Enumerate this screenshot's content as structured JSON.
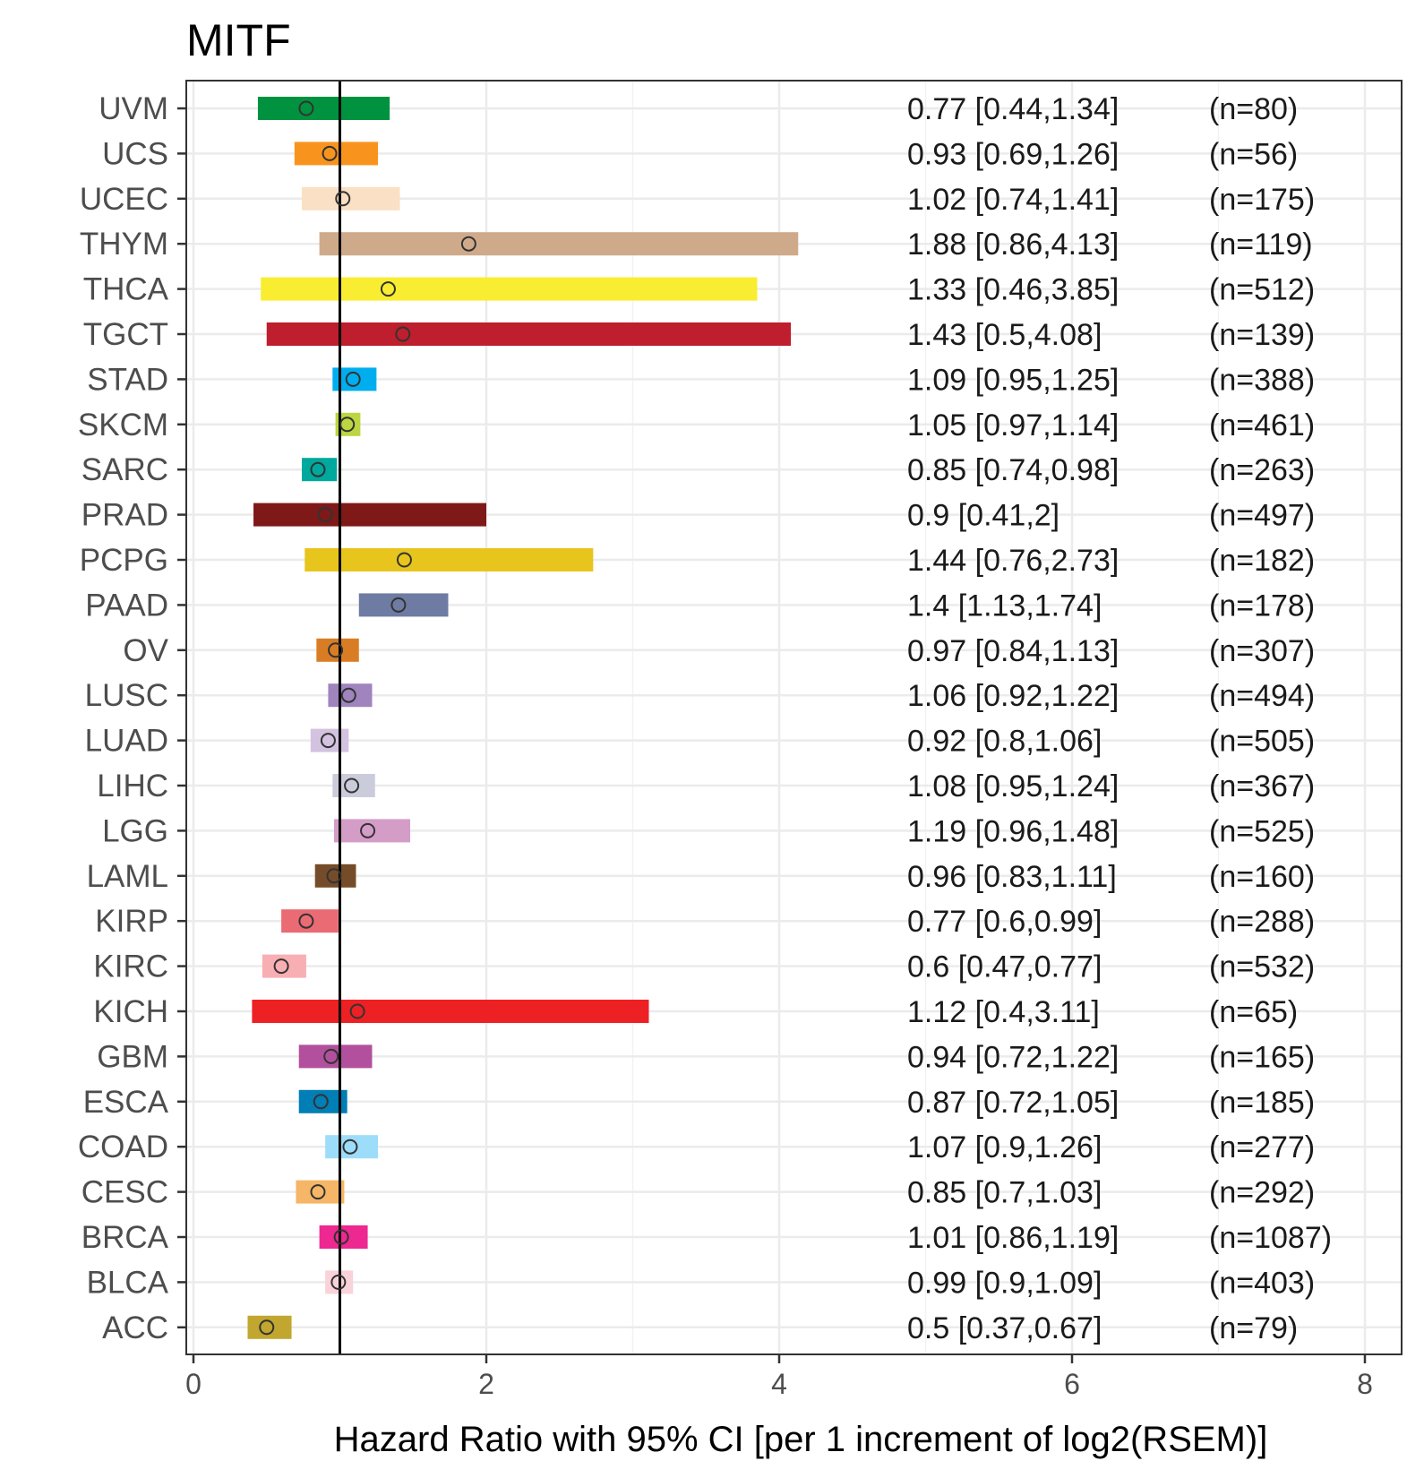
{
  "chart_data": {
    "type": "forest",
    "title": "MITF",
    "xlabel": "Hazard Ratio with 95% CI [per 1 increment of log2(RSEM)]",
    "ylabel": "",
    "xlim": [
      0,
      8
    ],
    "xticks": [
      0,
      2,
      4,
      6,
      8
    ],
    "reference_line": 1,
    "grid": true,
    "rows": [
      {
        "name": "UVM",
        "hr": 0.77,
        "lo": 0.44,
        "hi": 1.34,
        "label": "0.77 [0.44,1.34]",
        "n": "(n=80)",
        "color": "#00923F"
      },
      {
        "name": "UCS",
        "hr": 0.93,
        "lo": 0.69,
        "hi": 1.26,
        "label": "0.93 [0.69,1.26]",
        "n": "(n=56)",
        "color": "#F8941E"
      },
      {
        "name": "UCEC",
        "hr": 1.02,
        "lo": 0.74,
        "hi": 1.41,
        "label": "1.02 [0.74,1.41]",
        "n": "(n=175)",
        "color": "#FAE0C4"
      },
      {
        "name": "THYM",
        "hr": 1.88,
        "lo": 0.86,
        "hi": 4.13,
        "label": "1.88 [0.86,4.13]",
        "n": "(n=119)",
        "color": "#CFAA8A"
      },
      {
        "name": "THCA",
        "hr": 1.33,
        "lo": 0.46,
        "hi": 3.85,
        "label": "1.33 [0.46,3.85]",
        "n": "(n=512)",
        "color": "#F9ED32"
      },
      {
        "name": "TGCT",
        "hr": 1.43,
        "lo": 0.5,
        "hi": 4.08,
        "label": "1.43 [0.5,4.08]",
        "n": "(n=139)",
        "color": "#BE1E2D"
      },
      {
        "name": "STAD",
        "hr": 1.09,
        "lo": 0.95,
        "hi": 1.25,
        "label": "1.09 [0.95,1.25]",
        "n": "(n=388)",
        "color": "#00AEEF"
      },
      {
        "name": "SKCM",
        "hr": 1.05,
        "lo": 0.97,
        "hi": 1.14,
        "label": "1.05 [0.97,1.14]",
        "n": "(n=461)",
        "color": "#BBD642"
      },
      {
        "name": "SARC",
        "hr": 0.85,
        "lo": 0.74,
        "hi": 0.98,
        "label": "0.85 [0.74,0.98]",
        "n": "(n=263)",
        "color": "#00A99D"
      },
      {
        "name": "PRAD",
        "hr": 0.9,
        "lo": 0.41,
        "hi": 2,
        "label": "0.9 [0.41,2]",
        "n": "(n=497)",
        "color": "#7E1918"
      },
      {
        "name": "PCPG",
        "hr": 1.44,
        "lo": 0.76,
        "hi": 2.73,
        "label": "1.44 [0.76,2.73]",
        "n": "(n=182)",
        "color": "#E8C51D"
      },
      {
        "name": "PAAD",
        "hr": 1.4,
        "lo": 1.13,
        "hi": 1.74,
        "label": "1.4 [1.13,1.74]",
        "n": "(n=178)",
        "color": "#6E7BA2"
      },
      {
        "name": "OV",
        "hr": 0.97,
        "lo": 0.84,
        "hi": 1.13,
        "label": "0.97 [0.84,1.13]",
        "n": "(n=307)",
        "color": "#D97D25"
      },
      {
        "name": "LUSC",
        "hr": 1.06,
        "lo": 0.92,
        "hi": 1.22,
        "label": "1.06 [0.92,1.22]",
        "n": "(n=494)",
        "color": "#A084BD"
      },
      {
        "name": "LUAD",
        "hr": 0.92,
        "lo": 0.8,
        "hi": 1.06,
        "label": "0.92 [0.8,1.06]",
        "n": "(n=505)",
        "color": "#D3C3E0"
      },
      {
        "name": "LIHC",
        "hr": 1.08,
        "lo": 0.95,
        "hi": 1.24,
        "label": "1.08 [0.95,1.24]",
        "n": "(n=367)",
        "color": "#CACCDB"
      },
      {
        "name": "LGG",
        "hr": 1.19,
        "lo": 0.96,
        "hi": 1.48,
        "label": "1.19 [0.96,1.48]",
        "n": "(n=525)",
        "color": "#D49DC7"
      },
      {
        "name": "LAML",
        "hr": 0.96,
        "lo": 0.83,
        "hi": 1.11,
        "label": "0.96 [0.83,1.11]",
        "n": "(n=160)",
        "color": "#754C29"
      },
      {
        "name": "KIRP",
        "hr": 0.77,
        "lo": 0.6,
        "hi": 0.99,
        "label": "0.77 [0.6,0.99]",
        "n": "(n=288)",
        "color": "#EA6B73"
      },
      {
        "name": "KIRC",
        "hr": 0.6,
        "lo": 0.47,
        "hi": 0.77,
        "label": "0.6 [0.47,0.77]",
        "n": "(n=532)",
        "color": "#F8AFB4"
      },
      {
        "name": "KICH",
        "hr": 1.12,
        "lo": 0.4,
        "hi": 3.11,
        "label": "1.12 [0.4,3.11]",
        "n": "(n=65)",
        "color": "#ED2024"
      },
      {
        "name": "GBM",
        "hr": 0.94,
        "lo": 0.72,
        "hi": 1.22,
        "label": "0.94 [0.72,1.22]",
        "n": "(n=165)",
        "color": "#B2509E"
      },
      {
        "name": "ESCA",
        "hr": 0.87,
        "lo": 0.72,
        "hi": 1.05,
        "label": "0.87 [0.72,1.05]",
        "n": "(n=185)",
        "color": "#007EB5"
      },
      {
        "name": "COAD",
        "hr": 1.07,
        "lo": 0.9,
        "hi": 1.26,
        "label": "1.07 [0.9,1.26]",
        "n": "(n=277)",
        "color": "#9EDDF9"
      },
      {
        "name": "CESC",
        "hr": 0.85,
        "lo": 0.7,
        "hi": 1.03,
        "label": "0.85 [0.7,1.03]",
        "n": "(n=292)",
        "color": "#F6B667"
      },
      {
        "name": "BRCA",
        "hr": 1.01,
        "lo": 0.86,
        "hi": 1.19,
        "label": "1.01 [0.86,1.19]",
        "n": "(n=1087)",
        "color": "#ED2891"
      },
      {
        "name": "BLCA",
        "hr": 0.99,
        "lo": 0.9,
        "hi": 1.09,
        "label": "0.99 [0.9,1.09]",
        "n": "(n=403)",
        "color": "#FAD2D9"
      },
      {
        "name": "ACC",
        "hr": 0.5,
        "lo": 0.37,
        "hi": 0.67,
        "label": "0.5 [0.37,0.67]",
        "n": "(n=79)",
        "color": "#C1A72F"
      }
    ]
  }
}
